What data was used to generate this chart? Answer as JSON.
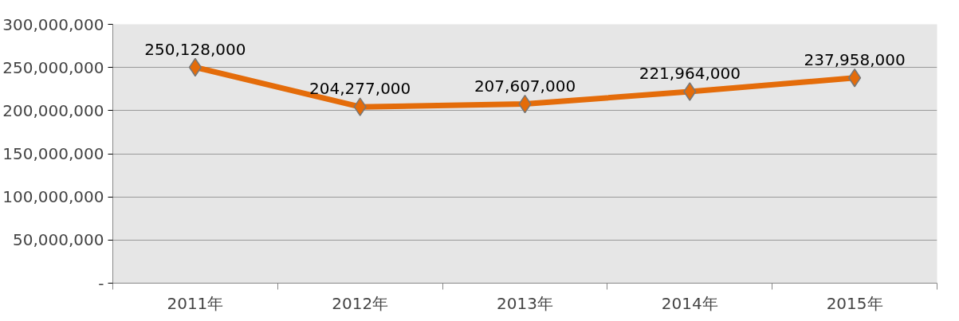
{
  "chart_data": {
    "type": "line",
    "categories": [
      "2011年",
      "2012年",
      "2013年",
      "2014年",
      "2015年"
    ],
    "series": [
      {
        "color": "#e46c0a",
        "values": [
          250128000,
          204277000,
          207607000,
          221964000,
          237958000
        ],
        "value_labels": [
          "250,128,000",
          "204,277,000",
          "207,607,000",
          "221,964,000",
          "237,958,000"
        ]
      }
    ],
    "ylim": [
      0,
      300000000
    ],
    "yticks": [
      {
        "value": 0,
        "label": "-"
      },
      {
        "value": 50000000,
        "label": "50,000,000"
      },
      {
        "value": 100000000,
        "label": "100,000,000"
      },
      {
        "value": 150000000,
        "label": "150,000,000"
      },
      {
        "value": 200000000,
        "label": "200,000,000"
      },
      {
        "value": 250000000,
        "label": "250,000,000"
      },
      {
        "value": 300000000,
        "label": "300,000,000"
      }
    ],
    "grid": "y",
    "marker": "diamond",
    "line_style": "solid"
  }
}
